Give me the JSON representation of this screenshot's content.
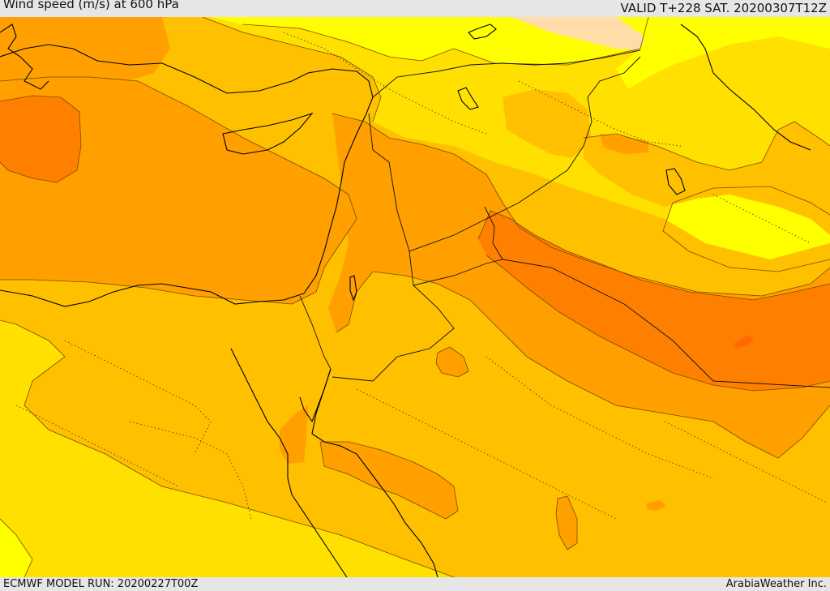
{
  "header": {
    "title": "Wind speed (m/s) at 600 hPa",
    "valid": "VALID T+228 SAT. 20200307T12Z"
  },
  "footer": {
    "model_run": "ECMWF MODEL RUN: 20200227T00Z",
    "credit": "ArabiaWeather Inc."
  },
  "colors": {
    "band_light_yellow": "#ffff00",
    "band_yellow": "#ffe000",
    "band_amber": "#ffc000",
    "band_orange": "#ffa000",
    "band_dark_orange": "#ff8000",
    "band_peach": "#ffdca8",
    "coastline": "#000000",
    "border": "#111111",
    "contour": "#7a4a00"
  }
}
